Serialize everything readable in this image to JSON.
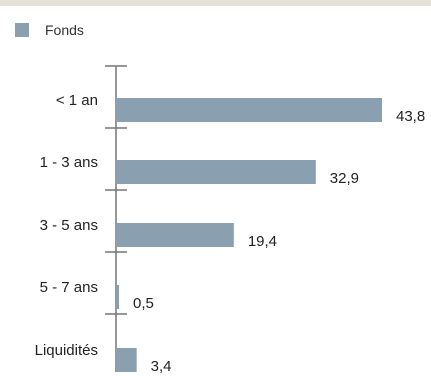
{
  "chart_data": {
    "type": "bar",
    "orientation": "horizontal",
    "categories": [
      "< 1 an",
      "1 - 3 ans",
      "3 - 5 ans",
      "5 - 7 ans",
      "Liquidités"
    ],
    "series": [
      {
        "name": "Fonds",
        "values": [
          43.8,
          32.9,
          19.4,
          0.5,
          3.4
        ]
      }
    ],
    "value_labels": [
      "43,8",
      "32,9",
      "19,4",
      "0,5",
      "3,4"
    ],
    "xlim": [
      0,
      43.8
    ],
    "legend_position": "top-left",
    "colors": {
      "bar": "#8a9faf",
      "axis": "#777777"
    }
  }
}
